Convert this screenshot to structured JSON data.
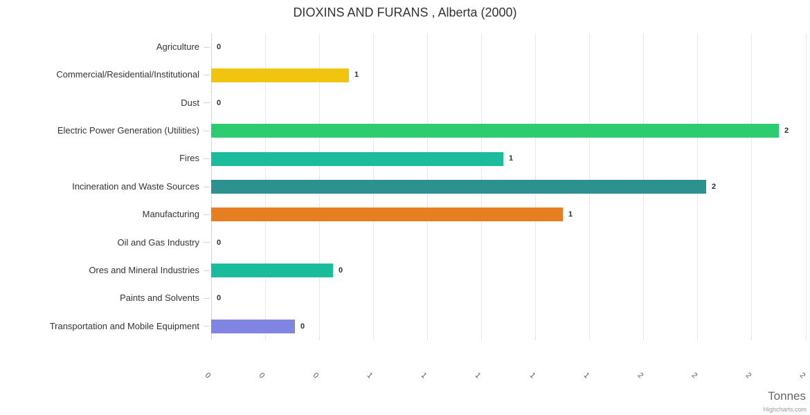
{
  "title": "DIOXINS AND FURANS , Alberta (2000)",
  "x_axis": {
    "title": "Tonnes"
  },
  "credit": "Highcharts.com",
  "chart_data": {
    "type": "bar",
    "orientation": "horizontal",
    "title": "DIOXINS AND FURANS , Alberta (2000)",
    "categories": [
      "Agriculture",
      "Commercial/Residential/Institutional",
      "Dust",
      "Electric Power Generation (Utilities)",
      "Fires",
      "Incineration and Waste Sources",
      "Manufacturing",
      "Oil and Gas Industry",
      "Ores and Mineral Industries",
      "Paints and Solvents",
      "Transportation and Mobile Equipment"
    ],
    "values": [
      0,
      0.51,
      0,
      2.1,
      1.08,
      1.83,
      1.3,
      0,
      0.45,
      0,
      0.31
    ],
    "value_labels": [
      "0",
      "1",
      "0",
      "2",
      "1",
      "2",
      "1",
      "0",
      "0",
      "0",
      "0"
    ],
    "bar_colors": [
      null,
      "#F1C40F",
      null,
      "#2ECC71",
      "#1ABC9C",
      "#2D9190",
      "#E67E22",
      null,
      "#1ABC9C",
      null,
      "#8085E2"
    ],
    "xlabel": "Tonnes",
    "xlim": [
      0,
      2.2
    ],
    "x_tick_values": [
      0,
      0.2,
      0.4,
      0.6,
      0.8,
      1.0,
      1.2,
      1.4,
      1.6,
      1.8,
      2.0,
      2.2
    ],
    "x_tick_labels": [
      "0",
      "0",
      "0",
      "1",
      "1",
      "1",
      "1",
      "1",
      "2",
      "2",
      "2",
      "2"
    ],
    "grid": true,
    "legend": false,
    "axis_line_color": "#ccd6eb",
    "grid_color": "#e6e6e6"
  }
}
